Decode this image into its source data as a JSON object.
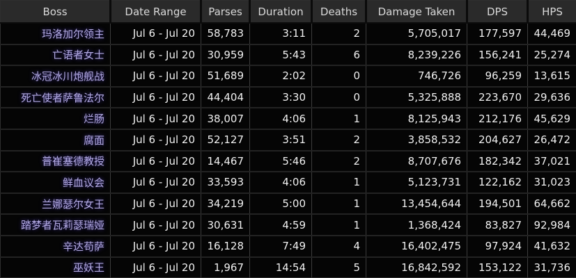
{
  "colors": {
    "header_bg": "#2a2a2a",
    "header_text": "#d9d9d9",
    "boss_link": "#b4abe4",
    "value_green": "#c0d791",
    "value_white": "#f2f2f2"
  },
  "table": {
    "columns": [
      {
        "key": "boss",
        "label": "Boss"
      },
      {
        "key": "date_range",
        "label": "Date Range"
      },
      {
        "key": "parses",
        "label": "Parses"
      },
      {
        "key": "duration",
        "label": "Duration"
      },
      {
        "key": "deaths",
        "label": "Deaths"
      },
      {
        "key": "damage_taken",
        "label": "Damage Taken"
      },
      {
        "key": "dps",
        "label": "DPS"
      },
      {
        "key": "hps",
        "label": "HPS"
      }
    ],
    "rows": [
      {
        "boss": "玛洛加尔领主",
        "date_range": "Jul 6 - Jul 20",
        "parses": "58,783",
        "duration": "3:11",
        "deaths": "2",
        "damage_taken": "5,705,017",
        "dps": "177,597",
        "hps": "44,469"
      },
      {
        "boss": "亡语者女士",
        "date_range": "Jul 6 - Jul 20",
        "parses": "30,959",
        "duration": "5:43",
        "deaths": "6",
        "damage_taken": "8,239,226",
        "dps": "156,241",
        "hps": "25,274"
      },
      {
        "boss": "冰冠冰川炮舰战",
        "date_range": "Jul 6 - Jul 20",
        "parses": "51,689",
        "duration": "2:02",
        "deaths": "0",
        "damage_taken": "746,726",
        "dps": "96,259",
        "hps": "13,615"
      },
      {
        "boss": "死亡使者萨鲁法尔",
        "date_range": "Jul 6 - Jul 20",
        "parses": "44,404",
        "duration": "3:30",
        "deaths": "0",
        "damage_taken": "5,325,888",
        "dps": "223,670",
        "hps": "29,636"
      },
      {
        "boss": "烂肠",
        "date_range": "Jul 6 - Jul 20",
        "parses": "38,007",
        "duration": "4:06",
        "deaths": "1",
        "damage_taken": "8,125,943",
        "dps": "212,176",
        "hps": "45,629"
      },
      {
        "boss": "腐面",
        "date_range": "Jul 6 - Jul 20",
        "parses": "52,127",
        "duration": "3:51",
        "deaths": "2",
        "damage_taken": "3,858,532",
        "dps": "204,627",
        "hps": "26,472"
      },
      {
        "boss": "普崔塞德教授",
        "date_range": "Jul 6 - Jul 20",
        "parses": "14,467",
        "duration": "5:46",
        "deaths": "2",
        "damage_taken": "8,707,676",
        "dps": "182,342",
        "hps": "37,021"
      },
      {
        "boss": "鲜血议会",
        "date_range": "Jul 6 - Jul 20",
        "parses": "33,593",
        "duration": "4:06",
        "deaths": "1",
        "damage_taken": "5,123,731",
        "dps": "122,162",
        "hps": "31,023"
      },
      {
        "boss": "兰娜瑟尔女王",
        "date_range": "Jul 6 - Jul 20",
        "parses": "34,219",
        "duration": "5:00",
        "deaths": "1",
        "damage_taken": "13,454,644",
        "dps": "194,501",
        "hps": "64,662"
      },
      {
        "boss": "踏梦者瓦莉瑟瑞娅",
        "date_range": "Jul 6 - Jul 20",
        "parses": "30,631",
        "duration": "4:59",
        "deaths": "1",
        "damage_taken": "1,368,424",
        "dps": "83,827",
        "hps": "92,984"
      },
      {
        "boss": "辛达苟萨",
        "date_range": "Jul 6 - Jul 20",
        "parses": "16,128",
        "duration": "7:49",
        "deaths": "4",
        "damage_taken": "16,402,475",
        "dps": "97,924",
        "hps": "41,632"
      },
      {
        "boss": "巫妖王",
        "date_range": "Jul 6 - Jul 20",
        "parses": "1,967",
        "duration": "14:54",
        "deaths": "5",
        "damage_taken": "16,842,592",
        "dps": "153,122",
        "hps": "31,736"
      }
    ]
  }
}
